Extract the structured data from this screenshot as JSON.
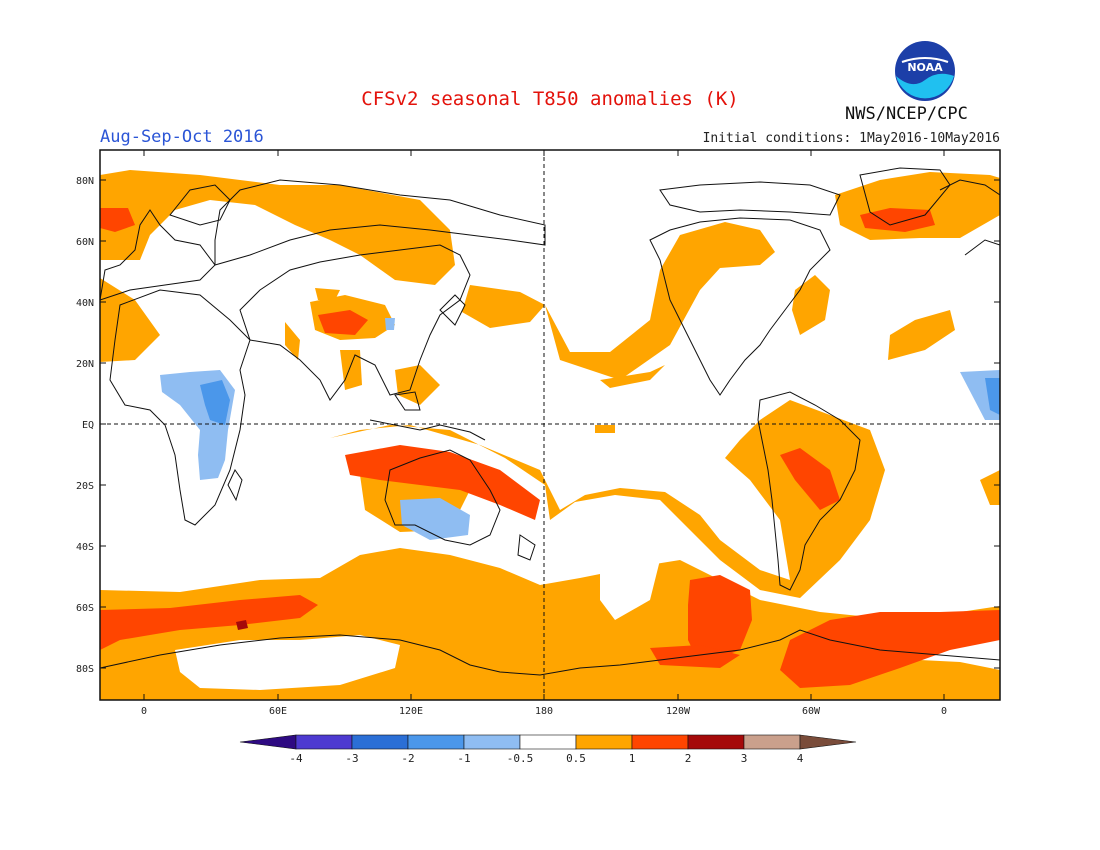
{
  "header": {
    "title": "CFSv2 seasonal T850 anomalies (K)",
    "season": "Aug-Sep-Oct 2016",
    "organization": "NWS/NCEP/CPC",
    "initial_conditions": "Initial conditions: 1May2016-10May2016",
    "logo_text": "NOAA"
  },
  "map": {
    "projection": "cylindrical",
    "lat_ticks": [
      "80N",
      "60N",
      "40N",
      "20N",
      "EQ",
      "20S",
      "40S",
      "60S",
      "80S"
    ],
    "lon_ticks": [
      "0",
      "60E",
      "120E",
      "180",
      "120W",
      "60W",
      "0"
    ],
    "reference_lines": [
      "equator",
      "dateline"
    ]
  },
  "colorbar": {
    "ticks": [
      "-4",
      "-3",
      "-2",
      "-1",
      "-0.5",
      "0.5",
      "1",
      "2",
      "3",
      "4"
    ],
    "colors": [
      "#2e0a82",
      "#4d3ad0",
      "#2b6fd6",
      "#4b97ea",
      "#8fbdf2",
      "#ffffff",
      "#ffa500",
      "#ff4500",
      "#a50a0a",
      "#caa08c",
      "#7a4c3a"
    ]
  },
  "anomaly_colors": {
    "weak_warm": "#ffa500",
    "strong_warm": "#ff4500",
    "very_strong_warm": "#a50a0a",
    "weak_cold": "#8fbdf2",
    "cold": "#4b97ea"
  }
}
